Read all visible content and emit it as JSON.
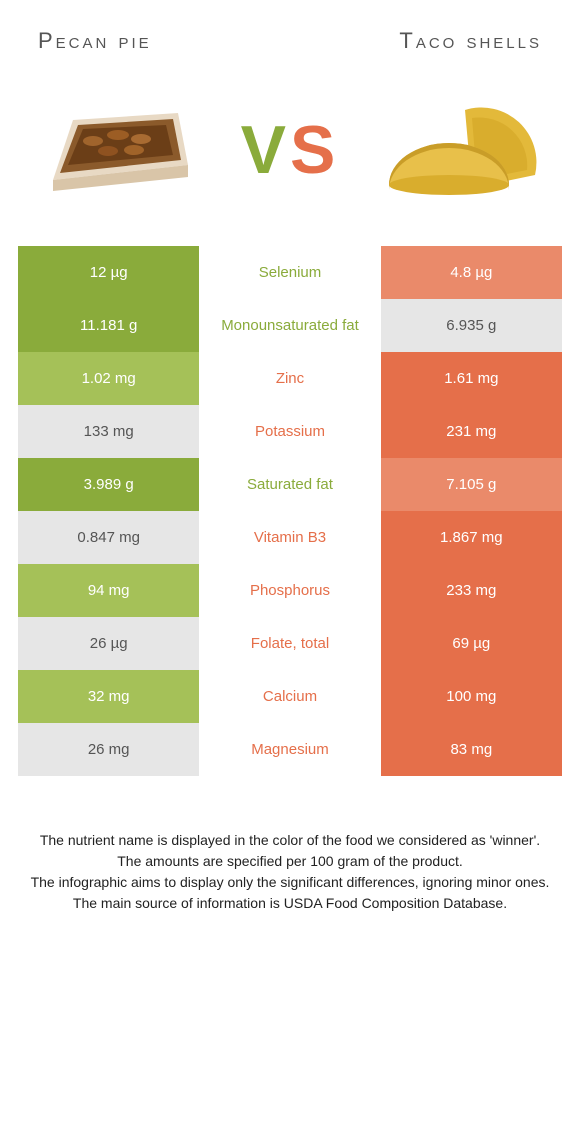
{
  "colors": {
    "food_a_full": "#8aab3b",
    "food_a_light": "#a5c158",
    "food_b_full": "#e56f4a",
    "food_b_light": "#ea8a6a",
    "winner_a_text": "#8aab3b",
    "winner_b_text": "#e56f4a",
    "neutral_bg": "#e6e6e6"
  },
  "food_a": {
    "name": "Pecan pie"
  },
  "food_b": {
    "name": "Taco shells"
  },
  "vs_label": "VS",
  "rows": [
    {
      "nutrient": "Selenium",
      "a": "12 µg",
      "b": "4.8 µg",
      "winner": "a"
    },
    {
      "nutrient": "Monounsaturated fat",
      "a": "11.181 g",
      "b": "6.935 g",
      "winner": "a"
    },
    {
      "nutrient": "Zinc",
      "a": "1.02 mg",
      "b": "1.61 mg",
      "winner": "b"
    },
    {
      "nutrient": "Potassium",
      "a": "133 mg",
      "b": "231 mg",
      "winner": "b"
    },
    {
      "nutrient": "Saturated fat",
      "a": "3.989 g",
      "b": "7.105 g",
      "winner": "a"
    },
    {
      "nutrient": "Vitamin B3",
      "a": "0.847 mg",
      "b": "1.867 mg",
      "winner": "b"
    },
    {
      "nutrient": "Phosphorus",
      "a": "94 mg",
      "b": "233 mg",
      "winner": "b"
    },
    {
      "nutrient": "Folate, total",
      "a": "26 µg",
      "b": "69 µg",
      "winner": "b"
    },
    {
      "nutrient": "Calcium",
      "a": "32 mg",
      "b": "100 mg",
      "winner": "b"
    },
    {
      "nutrient": "Magnesium",
      "a": "26 mg",
      "b": "83 mg",
      "winner": "b"
    }
  ],
  "footnotes": [
    "The nutrient name is displayed in the color of the food we considered as 'winner'.",
    "The amounts are specified per 100 gram of the product.",
    "The infographic aims to display only the significant differences, ignoring minor ones.",
    "The main source of information is USDA Food Composition Database."
  ]
}
